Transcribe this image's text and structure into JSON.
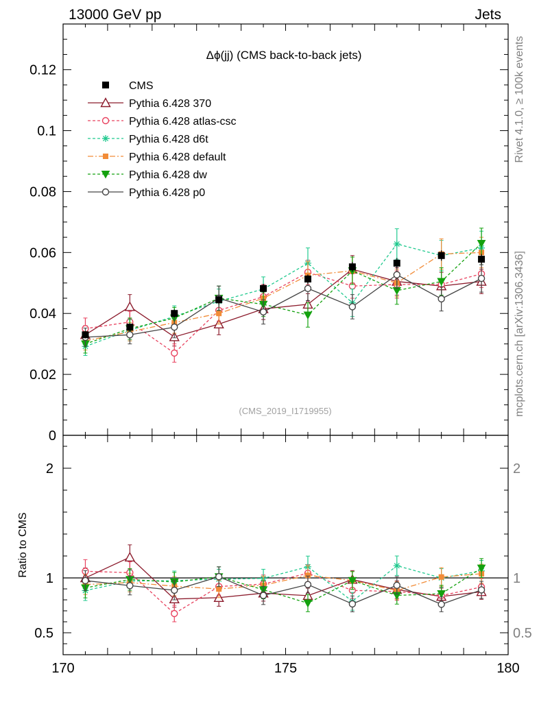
{
  "header": {
    "left": "13000 GeV pp",
    "right": "Jets",
    "side_top": "Rivet 4.1.0, ≥ 100k events",
    "side_bottom": "mcplots.cern.ch [arXiv:1306.3436]"
  },
  "chart_data": {
    "type": "scatter",
    "title": "Δϕ(jj) (CMS back-to-back jets)",
    "watermark": "(CMS_2019_I1719955)",
    "xlabel": "",
    "ylabel_main": "",
    "ylabel_ratio": "Ratio to CMS",
    "xlim": [
      170,
      180
    ],
    "ylim_main": [
      0,
      0.135
    ],
    "ylim_ratio": [
      0.3,
      2.3
    ],
    "x_ticks": [
      "170",
      "175",
      "180"
    ],
    "y_ticks_main": [
      "0",
      "0.02",
      "0.04",
      "0.06",
      "0.08",
      "0.1",
      "0.12"
    ],
    "y_ticks_ratio": [
      "0.5",
      "1",
      "2"
    ],
    "x": [
      170.5,
      171.5,
      172.5,
      173.5,
      174.5,
      175.5,
      176.5,
      177.5,
      178.5,
      179.4
    ],
    "data": {
      "name": "CMS",
      "values": [
        0.033,
        0.0355,
        0.04,
        0.0445,
        0.0482,
        0.0513,
        0.0553,
        0.0565,
        0.059,
        0.0578
      ],
      "errors": [
        0.0012,
        0.0012,
        0.0013,
        0.0015,
        0.0015,
        0.0015,
        0.0016,
        0.0017,
        0.0017,
        0.0017
      ]
    },
    "series": [
      {
        "name": "Pythia 6.428 370",
        "color": "#8b1a2b",
        "marker": "triangle-open",
        "dash": "",
        "values": [
          0.033,
          0.0422,
          0.0323,
          0.0365,
          0.0415,
          0.043,
          0.0545,
          0.0505,
          0.049,
          0.0505
        ],
        "errors": [
          0.003,
          0.004,
          0.003,
          0.0035,
          0.0035,
          0.0035,
          0.0045,
          0.0045,
          0.0045,
          0.004
        ]
      },
      {
        "name": "Pythia 6.428 atlas-csc",
        "color": "#e8415e",
        "marker": "circle-open",
        "dash": "4,3",
        "values": [
          0.035,
          0.0372,
          0.027,
          0.041,
          0.0455,
          0.0535,
          0.049,
          0.0495,
          0.0495,
          0.053
        ],
        "errors": [
          0.0035,
          0.0035,
          0.003,
          0.0035,
          0.004,
          0.004,
          0.004,
          0.0045,
          0.0045,
          0.0045
        ]
      },
      {
        "name": "Pythia 6.428 d6t",
        "color": "#1fc98e",
        "marker": "star",
        "dash": "4,3",
        "values": [
          0.0292,
          0.0345,
          0.039,
          0.044,
          0.048,
          0.0565,
          0.0435,
          0.0628,
          0.059,
          0.0615
        ],
        "errors": [
          0.003,
          0.0035,
          0.0035,
          0.004,
          0.004,
          0.005,
          0.0045,
          0.005,
          0.005,
          0.0055
        ]
      },
      {
        "name": "Pythia 6.428 default",
        "color": "#f28c38",
        "marker": "square",
        "dash": "8,3,2,3",
        "values": [
          0.031,
          0.034,
          0.037,
          0.04,
          0.045,
          0.0525,
          0.054,
          0.05,
          0.0595,
          0.06
        ],
        "errors": [
          0.003,
          0.003,
          0.0035,
          0.0035,
          0.004,
          0.0045,
          0.0045,
          0.0045,
          0.005,
          0.005
        ]
      },
      {
        "name": "Pythia 6.428 dw",
        "color": "#13a10e",
        "marker": "triangle-down",
        "dash": "4,3",
        "values": [
          0.03,
          0.035,
          0.0385,
          0.045,
          0.043,
          0.0395,
          0.054,
          0.0475,
          0.0505,
          0.063
        ],
        "errors": [
          0.003,
          0.0035,
          0.0035,
          0.004,
          0.004,
          0.004,
          0.0045,
          0.0045,
          0.0045,
          0.005
        ]
      },
      {
        "name": "Pythia 6.428 p0",
        "color": "#444444",
        "marker": "circle-open",
        "dash": "",
        "values": [
          0.0322,
          0.033,
          0.0355,
          0.045,
          0.0405,
          0.0482,
          0.0422,
          0.0527,
          0.0448,
          0.0515
        ],
        "errors": [
          0.003,
          0.003,
          0.0035,
          0.004,
          0.004,
          0.004,
          0.004,
          0.0045,
          0.004,
          0.0045
        ]
      }
    ]
  }
}
